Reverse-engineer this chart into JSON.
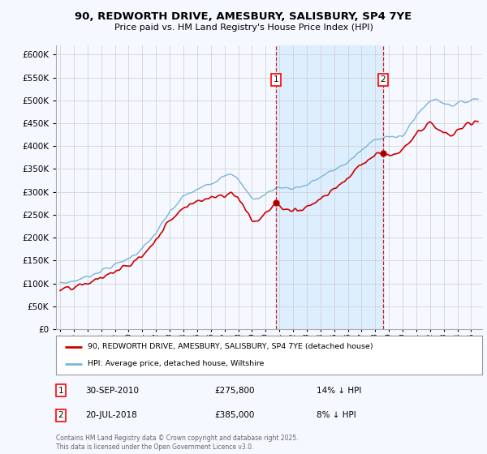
{
  "title": "90, REDWORTH DRIVE, AMESBURY, SALISBURY, SP4 7YE",
  "subtitle": "Price paid vs. HM Land Registry's House Price Index (HPI)",
  "ytick_values": [
    0,
    50000,
    100000,
    150000,
    200000,
    250000,
    300000,
    350000,
    400000,
    450000,
    500000,
    550000,
    600000
  ],
  "ylim": [
    0,
    620000
  ],
  "hpi_color": "#7ab4d8",
  "hpi_fill_color": "#d6e9f8",
  "price_color": "#cc0000",
  "marker1_date": 2010.75,
  "marker2_date": 2018.55,
  "marker1_price": 275800,
  "marker2_price": 385000,
  "legend_label1": "90, REDWORTH DRIVE, AMESBURY, SALISBURY, SP4 7YE (detached house)",
  "legend_label2": "HPI: Average price, detached house, Wiltshire",
  "annotation1_date": "30-SEP-2010",
  "annotation1_price": "£275,800",
  "annotation1_hpi": "14% ↓ HPI",
  "annotation2_date": "20-JUL-2018",
  "annotation2_price": "£385,000",
  "annotation2_hpi": "8% ↓ HPI",
  "footer": "Contains HM Land Registry data © Crown copyright and database right 2025.\nThis data is licensed under the Open Government Licence v3.0.",
  "background_color": "#f5f8ff",
  "plot_bg_color": "#f5f8ff",
  "grid_color": "#cccccc",
  "shaded_region_color": "#ddeeff"
}
